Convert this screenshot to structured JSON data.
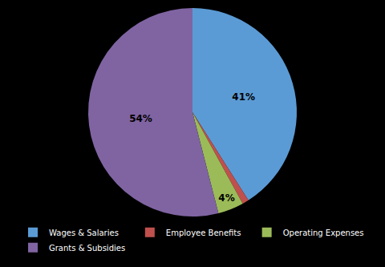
{
  "chart_data": {
    "type": "pie",
    "categories": [
      "Wages & Salaries",
      "Employee Benefits",
      "Operating Expenses",
      "Grants & Subsidies"
    ],
    "values": [
      41,
      1,
      4,
      54
    ],
    "value_labels": [
      "41%",
      null,
      "4%",
      "54%"
    ],
    "colors": [
      "#5b9bd5",
      "#c0504d",
      "#9bbb59",
      "#8064a2"
    ],
    "legend": "bottom"
  }
}
